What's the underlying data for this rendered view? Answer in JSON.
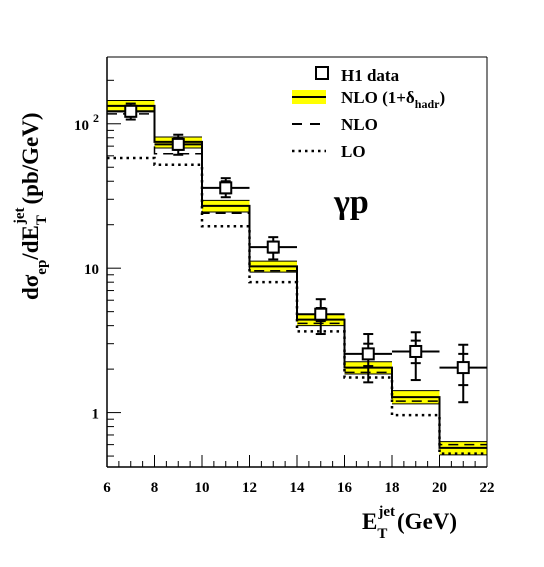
{
  "chart_data": {
    "type": "line",
    "plot_style": "step histogram with data points",
    "xlabel": {
      "main": "E",
      "sub": "T",
      "sup": "jet",
      "unit": "(GeV)"
    },
    "ylabel": {
      "main": "dσ",
      "sub1": "ep",
      "mid": "/dE",
      "sub2": "T",
      "sup": "jet",
      "unit": "(pb/GeV)"
    },
    "xlim": [
      6,
      22
    ],
    "ylim": [
      0.42,
      290
    ],
    "yscale": "log",
    "xticks": [
      "6",
      "8",
      "10",
      "12",
      "14",
      "16",
      "18",
      "20",
      "22"
    ],
    "yticks": [
      {
        "value": 1,
        "label": "1",
        "sup": ""
      },
      {
        "value": 10,
        "label": "10",
        "sup": ""
      },
      {
        "value": 100,
        "label": "10",
        "sup": "2"
      }
    ],
    "annotation": "γp",
    "legend": {
      "placement": "top-right",
      "entries": [
        {
          "key": "data",
          "label": "H1 data"
        },
        {
          "key": "band",
          "label": "NLO (1+δ",
          "sub": "hadr",
          "tail": ")"
        },
        {
          "key": "nlo",
          "label": "NLO"
        },
        {
          "key": "lo",
          "label": "LO"
        }
      ]
    },
    "bins": [
      [
        6,
        8
      ],
      [
        8,
        10
      ],
      [
        10,
        12
      ],
      [
        12,
        14
      ],
      [
        14,
        16
      ],
      [
        16,
        18
      ],
      [
        18,
        20
      ],
      [
        20,
        22
      ]
    ],
    "series": [
      {
        "name": "H1 data",
        "x": [
          7,
          9,
          11,
          13,
          15,
          17,
          19,
          21
        ],
        "xerr": [
          1,
          1,
          1,
          1,
          1,
          1,
          1,
          1
        ],
        "y": [
          122,
          72,
          36,
          14,
          4.8,
          2.55,
          2.65,
          2.05
        ],
        "y_inner_low": [
          112,
          66,
          33,
          12.8,
          4.3,
          2.1,
          2.2,
          1.55
        ],
        "y_inner_high": [
          133,
          79,
          40,
          15.3,
          5.3,
          3.0,
          3.15,
          2.55
        ],
        "y_low": [
          107,
          61,
          31,
          11.5,
          3.5,
          1.62,
          1.68,
          1.18
        ],
        "y_high": [
          138,
          84,
          42,
          16.4,
          6.1,
          3.5,
          3.6,
          2.95
        ],
        "color": "#000000"
      },
      {
        "name": "NLO (1+δhadr)",
        "values": [
          133,
          75,
          27,
          10.3,
          4.4,
          2.05,
          1.28,
          0.57
        ],
        "band_low": [
          121,
          68,
          24.5,
          9.4,
          4.0,
          1.85,
          1.15,
          0.51
        ],
        "band_high": [
          145,
          81,
          29.5,
          11.2,
          4.8,
          2.25,
          1.42,
          0.63
        ],
        "color": "#000000",
        "band_color": "#ffff00"
      },
      {
        "name": "NLO",
        "values": [
          117,
          62,
          24,
          9.6,
          4.15,
          1.9,
          1.2,
          0.6
        ],
        "color": "#000000"
      },
      {
        "name": "LO",
        "values": [
          58,
          52,
          19.5,
          8.0,
          3.65,
          1.75,
          0.96,
          0.52
        ],
        "color": "#000000"
      }
    ]
  }
}
